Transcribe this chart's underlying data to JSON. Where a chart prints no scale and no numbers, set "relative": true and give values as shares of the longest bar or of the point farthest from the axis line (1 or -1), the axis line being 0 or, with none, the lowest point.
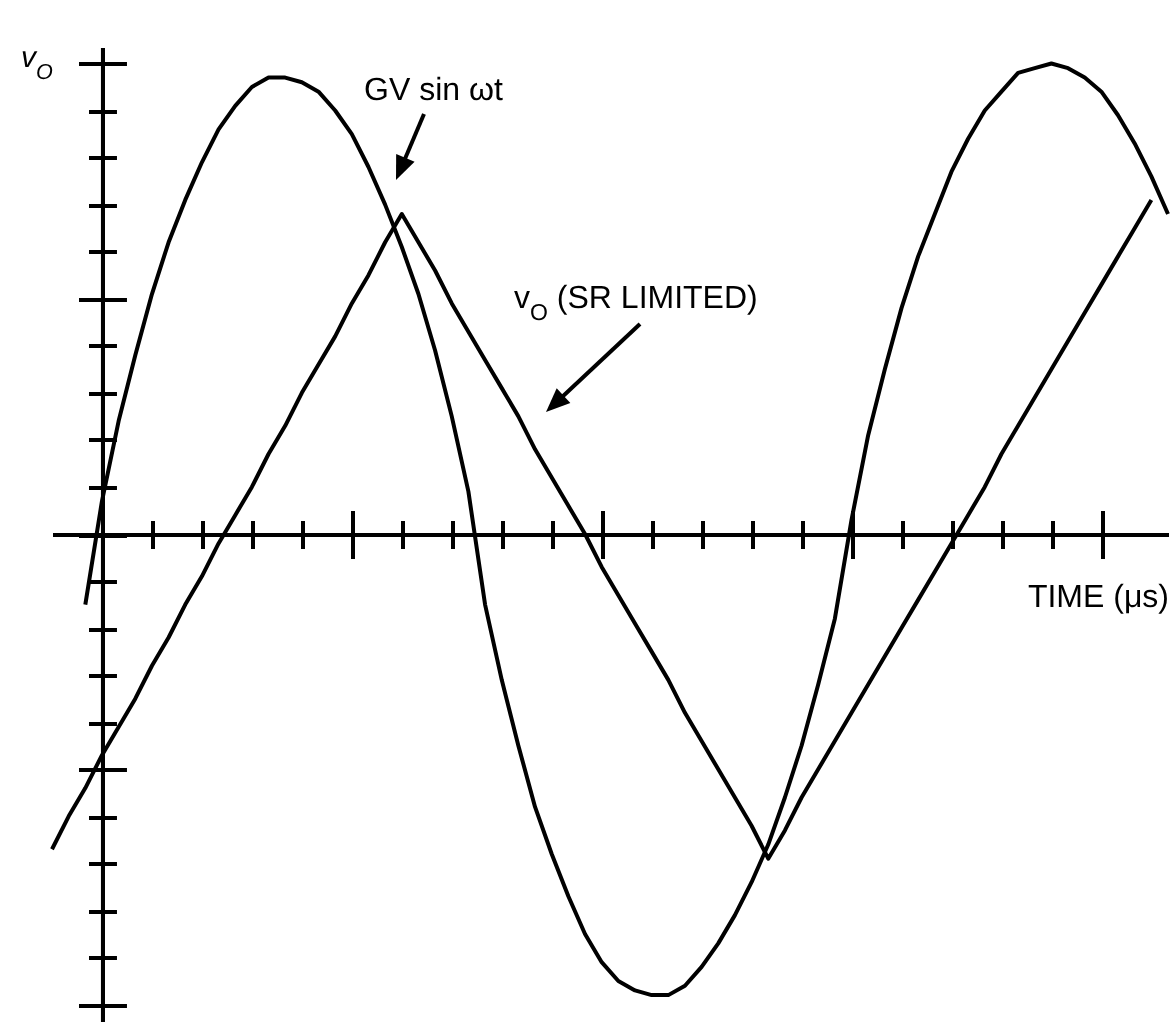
{
  "chart_data": {
    "type": "line",
    "relative": true,
    "xlabel": "TIME (μs)",
    "ylabel": "v$_{O}$",
    "categories": [
      null,
      null,
      null,
      null,
      null,
      null,
      null,
      null,
      null,
      null,
      null,
      null,
      null,
      null,
      null,
      null,
      null,
      null,
      null,
      null,
      null,
      null,
      null,
      null,
      null,
      null,
      null,
      null,
      null,
      null,
      null,
      null,
      null,
      null,
      null,
      null,
      null,
      null,
      null,
      null,
      null,
      null,
      null,
      null,
      null,
      null,
      null,
      null,
      null,
      null,
      null,
      null,
      null,
      null,
      null,
      null,
      null,
      null,
      null,
      null,
      null,
      null,
      null,
      null,
      null,
      null,
      null,
      null
    ],
    "series": [
      {
        "name": "GV sin ωt",
        "color": "#000000",
        "values": [
          null,
          null,
          -0.15,
          0.07,
          0.24,
          0.38,
          0.51,
          0.62,
          0.71,
          0.79,
          0.86,
          0.91,
          0.95,
          0.97,
          0.97,
          0.96,
          0.94,
          0.9,
          0.85,
          0.78,
          0.7,
          0.61,
          0.51,
          0.39,
          0.25,
          0.09,
          -0.15,
          -0.31,
          -0.45,
          -0.58,
          -0.68,
          -0.77,
          -0.85,
          -0.91,
          -0.95,
          -0.97,
          -0.98,
          -0.98,
          -0.96,
          -0.92,
          -0.87,
          -0.81,
          -0.74,
          -0.66,
          -0.56,
          -0.45,
          -0.32,
          -0.18,
          0.03,
          0.21,
          0.35,
          0.48,
          0.59,
          0.68,
          0.77,
          0.84,
          0.9,
          0.94,
          0.98,
          0.99,
          1,
          0.99,
          0.97,
          0.94,
          0.89,
          0.83,
          0.76,
          0.68
        ]
      },
      {
        "name": "v$_{O}$ (SR LIMITED)",
        "color": "#000000",
        "values": [
          -0.67,
          -0.6,
          -0.54,
          -0.47,
          -0.41,
          -0.35,
          -0.28,
          -0.22,
          -0.15,
          -0.09,
          -0.02,
          0.04,
          0.1,
          0.17,
          0.23,
          0.3,
          0.36,
          0.42,
          0.49,
          0.55,
          0.62,
          0.68,
          0.62,
          0.56,
          0.49,
          0.43,
          0.37,
          0.31,
          0.25,
          0.18,
          0.12,
          0.06,
          0,
          -0.07,
          -0.13,
          -0.19,
          -0.25,
          -0.31,
          -0.38,
          -0.44,
          -0.5,
          -0.56,
          -0.62,
          -0.69,
          -0.63,
          -0.56,
          -0.5,
          -0.44,
          -0.38,
          -0.32,
          -0.26,
          -0.2,
          -0.14,
          -0.08,
          -0.02,
          0.04,
          0.1,
          0.17,
          0.23,
          0.29,
          0.35,
          0.41,
          0.47,
          0.53,
          0.59,
          0.65,
          0.71,
          null
        ]
      }
    ]
  }
}
